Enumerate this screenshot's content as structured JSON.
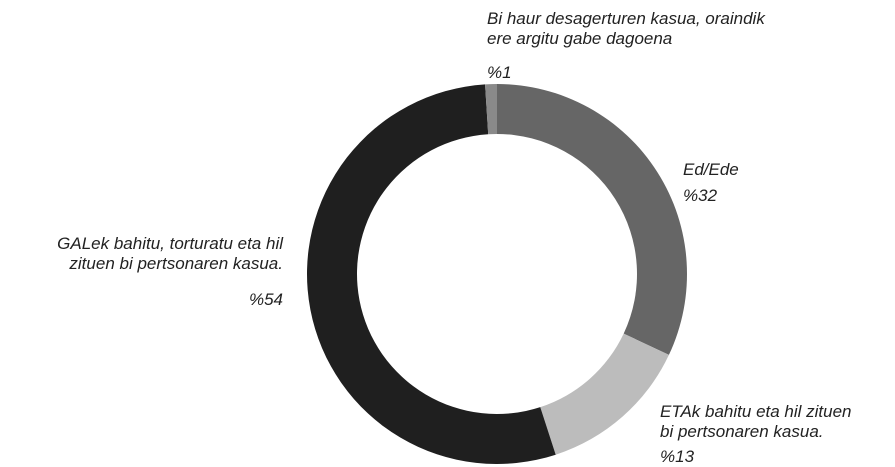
{
  "chart_data": {
    "type": "donut",
    "categories": [
      "Ed/Ede",
      "ETAk bahitu eta hil zituen\nbi pertsonaren kasua.",
      "GALek bahitu, torturatu eta hil\nzituen bi pertsonaren kasua.",
      "Bi haur desagerturen kasua, oraindik\nere argitu gabe dagoena"
    ],
    "values": [
      32,
      13,
      54,
      1
    ],
    "value_labels": [
      "%32",
      "%13",
      "%54",
      "%1"
    ],
    "colors": [
      "#666666",
      "#bcbcbc",
      "#1f1f1f",
      "#8a8a8a"
    ]
  }
}
